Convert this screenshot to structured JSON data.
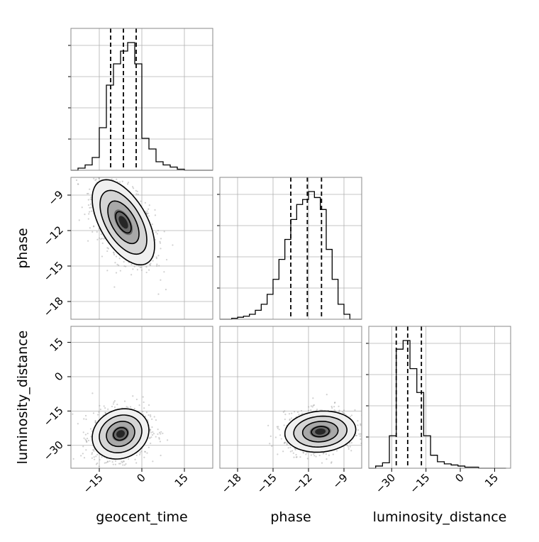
{
  "chart_data": {
    "type": "corner",
    "parameters": [
      {
        "name": "geocent_time",
        "label": "geocent_time",
        "range": [
          -25,
          25
        ],
        "ticks": [
          -15,
          0,
          15
        ],
        "tick_labels": [
          "−15",
          "0",
          "15"
        ],
        "quantiles": [
          -11,
          -6.5,
          -2
        ]
      },
      {
        "name": "phase",
        "label": "phase",
        "range": [
          -19.5,
          -7.5
        ],
        "ticks": [
          -18,
          -15,
          -12,
          -9
        ],
        "tick_labels": [
          "−18",
          "−15",
          "−12",
          "−9"
        ],
        "quantiles": [
          -13.5,
          -12.1,
          -10.9
        ]
      },
      {
        "name": "luminosity_distance",
        "label": "luminosity_distance",
        "range": [
          -40,
          22
        ],
        "ticks": [
          -30,
          -15,
          0,
          15
        ],
        "tick_labels": [
          "−30",
          "−15",
          "0",
          "15"
        ],
        "quantiles": [
          -28,
          -23,
          -17
        ]
      }
    ],
    "histograms": [
      {
        "parameter": "geocent_time",
        "bin_edges": [
          -25,
          -22.5,
          -20,
          -17.5,
          -15,
          -12.5,
          -10,
          -7.5,
          -5,
          -2.5,
          0,
          2.5,
          5,
          7.5,
          10,
          12.5,
          15,
          17.5,
          20,
          22.5,
          25
        ],
        "counts": [
          0,
          2,
          5,
          12,
          40,
          80,
          100,
          112,
          120,
          100,
          30,
          20,
          8,
          5,
          3,
          1,
          0,
          0,
          0,
          0
        ]
      },
      {
        "parameter": "phase",
        "bin_edges": [
          -19.5,
          -19,
          -18.5,
          -18,
          -17.5,
          -17,
          -16.5,
          -16,
          -15.5,
          -15,
          -14.5,
          -14,
          -13.5,
          -13,
          -12.5,
          -12,
          -11.5,
          -11,
          -10.5,
          -10,
          -9.5,
          -9,
          -8.5,
          -8,
          -7.5
        ],
        "counts": [
          0,
          0,
          1,
          2,
          3,
          5,
          9,
          15,
          25,
          40,
          60,
          80,
          100,
          115,
          120,
          128,
          122,
          110,
          70,
          40,
          15,
          5,
          0,
          0
        ]
      },
      {
        "parameter": "luminosity_distance",
        "bin_edges": [
          -40,
          -37,
          -34,
          -31,
          -28,
          -25,
          -22,
          -19,
          -16,
          -13,
          -10,
          -7,
          -4,
          -1,
          2,
          5,
          8,
          11,
          14,
          17,
          20
        ],
        "counts": [
          0,
          2,
          5,
          30,
          110,
          118,
          92,
          70,
          30,
          12,
          6,
          4,
          3,
          2,
          1,
          1,
          0,
          0,
          0,
          0
        ]
      }
    ],
    "pairs": [
      {
        "x": "geocent_time",
        "y": "phase",
        "center": [
          -6.5,
          -11.3
        ],
        "sigma": [
          5.5,
          1.8
        ],
        "rho": -0.55
      },
      {
        "x": "geocent_time",
        "y": "luminosity_distance",
        "center": [
          -7.5,
          -25
        ],
        "sigma": [
          5,
          5.5
        ],
        "rho": 0.15
      },
      {
        "x": "phase",
        "y": "luminosity_distance",
        "center": [
          -11,
          -24
        ],
        "sigma": [
          1.5,
          4.5
        ],
        "rho": 0.1
      }
    ],
    "contour_levels_sigma": [
      0.5,
      1.0,
      1.5,
      2.0
    ],
    "colors": {
      "hist": "#000000",
      "points": "#9a9a9a",
      "grid": "#b0b0b0",
      "density": "#000000"
    },
    "grid": true
  }
}
